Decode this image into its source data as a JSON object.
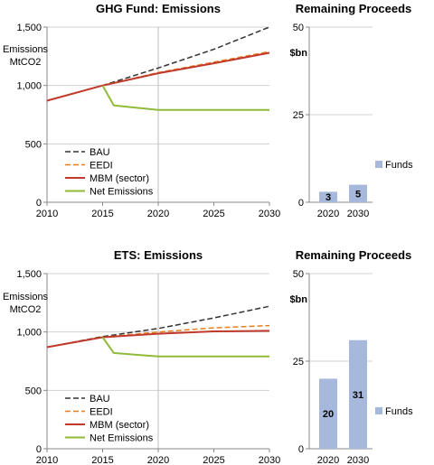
{
  "chart_data": [
    {
      "type": "line",
      "title": "GHG Fund:  Emissions",
      "ylabel": "Emissions MtCO2",
      "ylabel_lines": [
        "Emissions",
        "MtCO2"
      ],
      "xlim": [
        2010,
        2030
      ],
      "ylim": [
        0,
        1500
      ],
      "x_ticks": [
        2010,
        2015,
        2020,
        2025,
        2030
      ],
      "x_tick_labels": [
        "2010",
        "2015",
        "2020",
        "2025",
        "2030"
      ],
      "y_ticks": [
        0,
        500,
        1000,
        1500
      ],
      "y_tick_labels": [
        "0",
        "500",
        "1,000",
        "1,500"
      ],
      "vline": 2020,
      "legend_position": "bottom-left",
      "series": [
        {
          "name": "BAU",
          "color": "#333333",
          "dash": "dashed",
          "x": [
            2010,
            2015,
            2020,
            2025,
            2030
          ],
          "y": [
            870,
            1000,
            1150,
            1310,
            1500
          ]
        },
        {
          "name": "EEDI",
          "color": "#e87e1c",
          "dash": "dashed",
          "x": [
            2010,
            2015,
            2020,
            2025,
            2030
          ],
          "y": [
            870,
            1000,
            1110,
            1200,
            1290
          ]
        },
        {
          "name": "MBM (sector)",
          "color": "#c0392b",
          "dash": "solid",
          "x": [
            2010,
            2015,
            2020,
            2025,
            2030
          ],
          "y": [
            870,
            1000,
            1105,
            1190,
            1280
          ]
        },
        {
          "name": "Net Emissions",
          "color": "#8fba3a",
          "dash": "solid",
          "x": [
            2015,
            2016,
            2020,
            2025,
            2030
          ],
          "y": [
            1000,
            830,
            790,
            790,
            790
          ]
        }
      ]
    },
    {
      "type": "bar",
      "title": "Remaining Proceeds",
      "ylabel": "$bn",
      "categories": [
        "2020",
        "2030"
      ],
      "values": [
        3,
        5
      ],
      "value_labels": [
        "3",
        "5"
      ],
      "ylim": [
        0,
        50
      ],
      "y_ticks": [
        0,
        25,
        50
      ],
      "y_tick_labels": [
        "0",
        "25",
        "50"
      ],
      "legend": "Funds",
      "color": "#a6b8dc"
    },
    {
      "type": "line",
      "title": "ETS:  Emissions",
      "ylabel": "Emissions MtCO2",
      "ylabel_lines": [
        "Emissions",
        "MtCO2"
      ],
      "xlim": [
        2010,
        2030
      ],
      "ylim": [
        0,
        1500
      ],
      "x_ticks": [
        2010,
        2015,
        2020,
        2025,
        2030
      ],
      "x_tick_labels": [
        "2010",
        "2015",
        "2020",
        "2025",
        "2030"
      ],
      "y_ticks": [
        0,
        500,
        1000,
        1500
      ],
      "y_tick_labels": [
        "0",
        "500",
        "1,000",
        "1,500"
      ],
      "vline": 2020,
      "legend_position": "bottom-left",
      "series": [
        {
          "name": "BAU",
          "color": "#333333",
          "dash": "dashed",
          "x": [
            2010,
            2015,
            2020,
            2025,
            2030
          ],
          "y": [
            870,
            960,
            1030,
            1120,
            1220
          ]
        },
        {
          "name": "EEDI",
          "color": "#e87e1c",
          "dash": "dashed",
          "x": [
            2010,
            2015,
            2020,
            2025,
            2030
          ],
          "y": [
            870,
            955,
            1000,
            1035,
            1055
          ]
        },
        {
          "name": "MBM (sector)",
          "color": "#c0392b",
          "dash": "solid",
          "x": [
            2010,
            2015,
            2020,
            2025,
            2030
          ],
          "y": [
            870,
            955,
            985,
            1005,
            1010
          ]
        },
        {
          "name": "Net Emissions",
          "color": "#8fba3a",
          "dash": "solid",
          "x": [
            2015,
            2016,
            2018,
            2020,
            2025,
            2030
          ],
          "y": [
            955,
            820,
            805,
            790,
            790,
            790
          ]
        }
      ]
    },
    {
      "type": "bar",
      "title": "Remaining Proceeds",
      "ylabel": "$bn",
      "categories": [
        "2020",
        "2030"
      ],
      "values": [
        20,
        31
      ],
      "value_labels": [
        "20",
        "31"
      ],
      "ylim": [
        0,
        50
      ],
      "y_ticks": [
        0,
        25,
        50
      ],
      "y_tick_labels": [
        "0",
        "25",
        "50"
      ],
      "legend": "Funds",
      "color": "#a6b8dc"
    }
  ]
}
